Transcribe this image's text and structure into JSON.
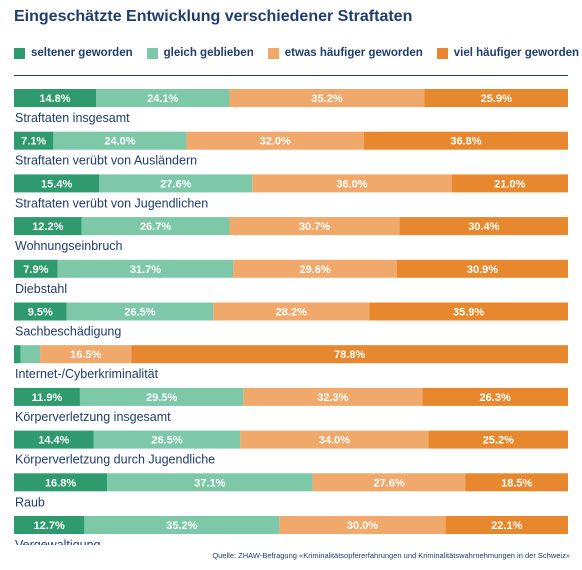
{
  "chart_data": {
    "type": "bar",
    "stacked": true,
    "orientation": "horizontal",
    "title": "Eingeschätzte Entwicklung verschiedener Straftaten",
    "legend_position": "top",
    "colors": [
      "#2e9a6e",
      "#7dc8a9",
      "#f0a96a",
      "#e8882e"
    ],
    "categories": [
      "Straftaten insgesamt",
      "Straftaten verübt von Ausländern",
      "Straftaten verübt von Jugendlichen",
      "Wohnungseinbruch",
      "Diebstahl",
      "Sachbeschädigung",
      "Internet-/Cyberkriminalität",
      "Körperverletzung insgesamt",
      "Körperverletzung durch Jugendliche",
      "Raub",
      "Vergewaltigung"
    ],
    "series": [
      {
        "name": "seltener geworden",
        "values": [
          14.8,
          7.1,
          15.4,
          12.2,
          7.9,
          9.5,
          1.2,
          11.9,
          14.4,
          16.8,
          12.7
        ]
      },
      {
        "name": "gleich geblieben",
        "values": [
          24.1,
          24.0,
          27.6,
          26.7,
          31.7,
          26.5,
          3.5,
          29.5,
          26.5,
          37.1,
          35.2
        ]
      },
      {
        "name": "etwas häufiger geworden",
        "values": [
          35.2,
          32.0,
          36.0,
          30.7,
          29.6,
          28.2,
          16.5,
          32.3,
          34.0,
          27.6,
          30.0
        ]
      },
      {
        "name": "viel häufiger geworden",
        "values": [
          25.9,
          36.8,
          21.0,
          30.4,
          30.9,
          35.9,
          78.8,
          26.3,
          25.2,
          18.5,
          22.1
        ]
      }
    ],
    "labels": [
      [
        "14.8%",
        "24.1%",
        "35.2%",
        "25.9%"
      ],
      [
        "7.1%",
        "24.0%",
        "32.0%",
        "36.8%"
      ],
      [
        "15.4%",
        "27.6%",
        "36.0%",
        "21.0%"
      ],
      [
        "12.2%",
        "26.7%",
        "30.7%",
        "30.4%"
      ],
      [
        "7.9%",
        "31.7%",
        "29.6%",
        "30.9%"
      ],
      [
        "9.5%",
        "26.5%",
        "28.2%",
        "35.9%"
      ],
      [
        "",
        "",
        "16.5%",
        "78.8%"
      ],
      [
        "11.9%",
        "29.5%",
        "32.3%",
        "26.3%"
      ],
      [
        "14.4%",
        "26.5%",
        "34.0%",
        "25.2%"
      ],
      [
        "16.8%",
        "37.1%",
        "27.6%",
        "18.5%"
      ],
      [
        "12.7%",
        "35.2%",
        "30.0%",
        "22.1%"
      ]
    ],
    "source": "Quelle: ZHAW-Befragung «Kriminalitätsopfererfahrungen und Kriminalitätswahrnehmungen in der Schweiz»"
  }
}
